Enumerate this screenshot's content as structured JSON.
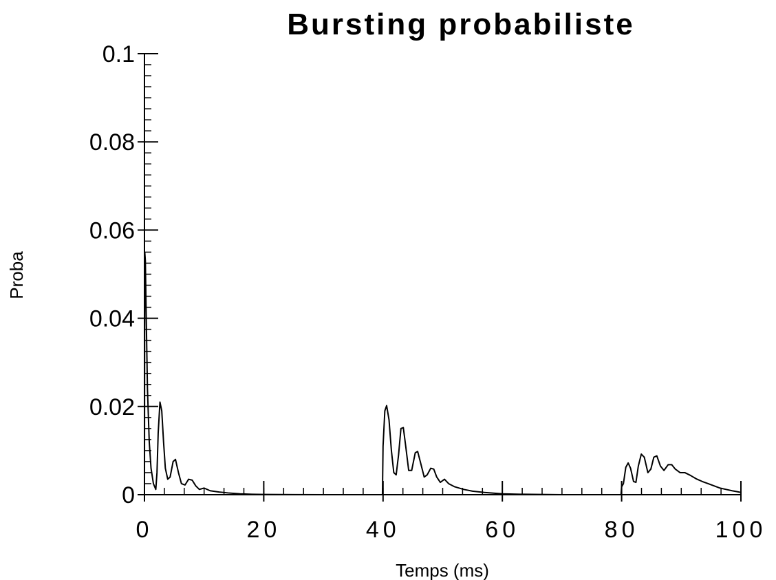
{
  "chart_data": {
    "type": "line",
    "title": "Bursting   probabiliste",
    "xlabel": "Temps (ms)",
    "ylabel": "Proba",
    "xlim": [
      0,
      100
    ],
    "ylim": [
      0,
      0.1
    ],
    "x_ticks": [
      "0",
      "20",
      "40",
      "60",
      "80",
      "100"
    ],
    "y_ticks": [
      "0",
      "0.02",
      "0.04",
      "0.06",
      "0.08",
      "0.1"
    ],
    "grid": false,
    "legend": "none",
    "series": [
      {
        "color": "#000000",
        "points": [
          [
            0,
            0
          ],
          [
            0.05,
            0.055
          ],
          [
            0.15,
            0.053
          ],
          [
            0.3,
            0.04
          ],
          [
            0.5,
            0.024
          ],
          [
            0.8,
            0.012
          ],
          [
            1.1,
            0.006
          ],
          [
            1.5,
            0.0025
          ],
          [
            1.9,
            0.0012
          ],
          [
            2.1,
            0.005
          ],
          [
            2.3,
            0.014
          ],
          [
            2.6,
            0.021
          ],
          [
            2.9,
            0.019
          ],
          [
            3.2,
            0.012
          ],
          [
            3.5,
            0.006
          ],
          [
            3.9,
            0.0035
          ],
          [
            4.3,
            0.004
          ],
          [
            4.8,
            0.0075
          ],
          [
            5.2,
            0.008
          ],
          [
            5.7,
            0.005
          ],
          [
            6.2,
            0.0025
          ],
          [
            6.8,
            0.0022
          ],
          [
            7.4,
            0.0035
          ],
          [
            8.0,
            0.0033
          ],
          [
            8.6,
            0.002
          ],
          [
            9.2,
            0.0012
          ],
          [
            10.0,
            0.0015
          ],
          [
            11.0,
            0.0009
          ],
          [
            12.5,
            0.0006
          ],
          [
            14.0,
            0.0004
          ],
          [
            16.0,
            0.0002
          ],
          [
            18.0,
            0.0001
          ],
          [
            20.0,
            5e-05
          ],
          [
            25.0,
            2e-05
          ],
          [
            30.0,
            0.0
          ],
          [
            35.0,
            0.0
          ],
          [
            39.9,
            0.0
          ],
          [
            40.0,
            0.011
          ],
          [
            40.3,
            0.019
          ],
          [
            40.6,
            0.0202
          ],
          [
            41.0,
            0.017
          ],
          [
            41.4,
            0.01
          ],
          [
            41.8,
            0.005
          ],
          [
            42.2,
            0.0045
          ],
          [
            42.6,
            0.009
          ],
          [
            43.0,
            0.015
          ],
          [
            43.4,
            0.0152
          ],
          [
            43.8,
            0.011
          ],
          [
            44.3,
            0.0055
          ],
          [
            44.8,
            0.0055
          ],
          [
            45.4,
            0.0095
          ],
          [
            45.8,
            0.0098
          ],
          [
            46.3,
            0.0072
          ],
          [
            46.9,
            0.004
          ],
          [
            47.4,
            0.0045
          ],
          [
            48.0,
            0.006
          ],
          [
            48.5,
            0.0058
          ],
          [
            49.0,
            0.004
          ],
          [
            49.6,
            0.0028
          ],
          [
            50.3,
            0.0035
          ],
          [
            51.0,
            0.0025
          ],
          [
            52.0,
            0.0018
          ],
          [
            53.5,
            0.0012
          ],
          [
            55.0,
            0.0008
          ],
          [
            57.0,
            0.0005
          ],
          [
            60.0,
            0.0002
          ],
          [
            63.0,
            0.0001
          ],
          [
            70.0,
            0.0
          ],
          [
            79.9,
            0.0
          ],
          [
            80.0,
            0.0018
          ],
          [
            80.3,
            0.0025
          ],
          [
            80.7,
            0.0062
          ],
          [
            81.1,
            0.0072
          ],
          [
            81.5,
            0.006
          ],
          [
            82.0,
            0.003
          ],
          [
            82.4,
            0.0028
          ],
          [
            82.8,
            0.0065
          ],
          [
            83.3,
            0.0092
          ],
          [
            83.8,
            0.0085
          ],
          [
            84.4,
            0.005
          ],
          [
            84.9,
            0.0058
          ],
          [
            85.4,
            0.0085
          ],
          [
            85.9,
            0.0088
          ],
          [
            86.5,
            0.0065
          ],
          [
            87.1,
            0.0055
          ],
          [
            87.8,
            0.0068
          ],
          [
            88.4,
            0.0068
          ],
          [
            89.0,
            0.0058
          ],
          [
            89.8,
            0.005
          ],
          [
            90.6,
            0.005
          ],
          [
            91.5,
            0.0044
          ],
          [
            92.5,
            0.0036
          ],
          [
            93.5,
            0.003
          ],
          [
            94.5,
            0.0025
          ],
          [
            95.5,
            0.002
          ],
          [
            96.5,
            0.0015
          ],
          [
            97.5,
            0.0012
          ],
          [
            98.5,
            0.0009
          ],
          [
            99.3,
            0.0007
          ],
          [
            100.0,
            0.0005
          ]
        ]
      }
    ]
  }
}
